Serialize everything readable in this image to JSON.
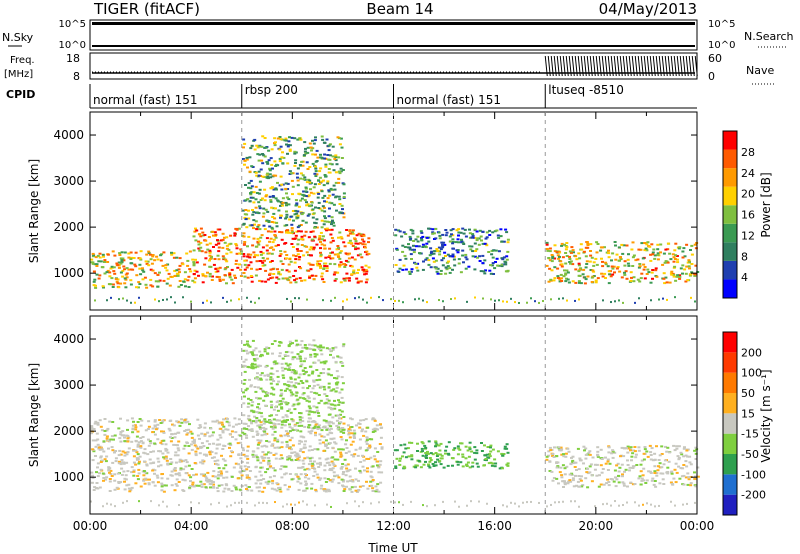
{
  "header": {
    "station": "TIGER (fitACF)",
    "beam": "Beam 14",
    "date": "04/May/2013"
  },
  "status_panels": {
    "nsky_label": "N.Sky",
    "nsky_ticks": [
      "10^5",
      "10^0"
    ],
    "nsearch_label": "N.Search",
    "nsearch_ticks": [
      "10^5",
      "10^0"
    ],
    "freq_label_top": "Freq.",
    "freq_label_bottom": "[MHz]",
    "freq_ticks": [
      "18",
      "8"
    ],
    "nave_label": "Nave",
    "nave_ticks": [
      "60",
      "0"
    ],
    "cpid_label": "CPID",
    "cpid_segments": [
      {
        "label": "normal (fast) 151",
        "start_hour": 0,
        "end_hour": 6
      },
      {
        "label": "rbsp 200",
        "start_hour": 6,
        "end_hour": 12
      },
      {
        "label": "normal (fast) 151",
        "start_hour": 12,
        "end_hour": 18
      },
      {
        "label": "ltuseq -8510",
        "start_hour": 18,
        "end_hour": 24
      }
    ]
  },
  "chart_data": [
    {
      "type": "heatmap",
      "title": "Power",
      "ylabel": "Slant Range [km]",
      "ylim": [
        200,
        4500
      ],
      "yticks": [
        "1000",
        "2000",
        "3000",
        "4000"
      ],
      "xlim": [
        0,
        24
      ],
      "colorbar": {
        "label": "Power [dB]",
        "range": [
          0,
          32
        ],
        "ticks": [
          "4",
          "8",
          "12",
          "16",
          "20",
          "24",
          "28"
        ],
        "colors": [
          "#0000ff",
          "#1f3fb0",
          "#2f7f5f",
          "#3a9a52",
          "#7fbf3f",
          "#ffd000",
          "#ff9a00",
          "#ff5a00",
          "#ff0000"
        ]
      },
      "echo_regions": [
        {
          "start_hour": 0.0,
          "end_hour": 4.0,
          "range_low": 700,
          "range_high": 1500,
          "power": 20
        },
        {
          "start_hour": 4.0,
          "end_hour": 11.0,
          "range_low": 800,
          "range_high": 2000,
          "power": 24
        },
        {
          "start_hour": 6.0,
          "end_hour": 10.0,
          "range_low": 2000,
          "range_high": 4000,
          "power": 14
        },
        {
          "start_hour": 12.0,
          "end_hour": 16.5,
          "range_low": 1000,
          "range_high": 2000,
          "power": 10
        },
        {
          "start_hour": 18.0,
          "end_hour": 24.0,
          "range_low": 800,
          "range_high": 1700,
          "power": 20
        }
      ]
    },
    {
      "type": "heatmap",
      "title": "Velocity",
      "ylabel": "Slant Range [km]",
      "ylim": [
        200,
        4500
      ],
      "yticks": [
        "1000",
        "2000",
        "3000",
        "4000"
      ],
      "xlabel": "Time UT",
      "xticks": [
        "00:00",
        "04:00",
        "08:00",
        "12:00",
        "16:00",
        "20:00",
        "00:00"
      ],
      "xlim": [
        0,
        24
      ],
      "colorbar": {
        "label": "Velocity [m s⁻¹]",
        "range": [
          -250,
          250
        ],
        "ticks": [
          "200",
          "100",
          "50",
          "15",
          "-15",
          "-50",
          "-100",
          "-200"
        ],
        "colors": [
          "#2020c0",
          "#1f6fd0",
          "#2fa04f",
          "#7fcf3f",
          "#c8c8c0",
          "#ffb020",
          "#ff7a00",
          "#ff3a00",
          "#ff0000"
        ]
      },
      "echo_regions": [
        {
          "start_hour": 0.0,
          "end_hour": 11.5,
          "range_low": 700,
          "range_high": 2300,
          "velocity": 0
        },
        {
          "start_hour": 6.0,
          "end_hour": 10.0,
          "range_low": 2000,
          "range_high": 4000,
          "velocity": -40
        },
        {
          "start_hour": 12.0,
          "end_hour": 16.5,
          "range_low": 1200,
          "range_high": 1800,
          "velocity": -80
        },
        {
          "start_hour": 18.0,
          "end_hour": 24.0,
          "range_low": 800,
          "range_high": 1700,
          "velocity": 0
        }
      ]
    }
  ]
}
